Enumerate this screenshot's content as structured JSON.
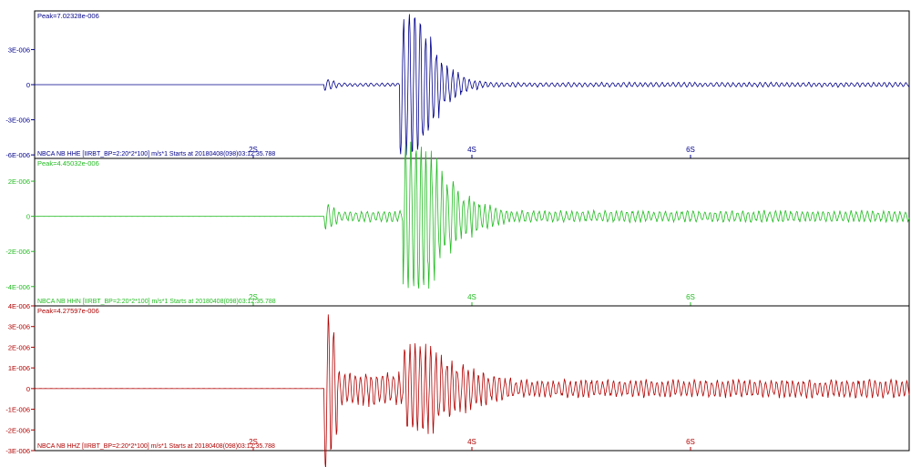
{
  "chart_data": [
    {
      "type": "line",
      "channel": "HHE",
      "color": "#00008b",
      "peak_label": "Peak=7.02328e-006",
      "caption": "NBCA NB HHE  [IIRBT_BP=2:20*2*100] m/s*1 Starts at 20180408(098)03:12:35.788",
      "ylim": [
        -6.3e-06,
        6.3e-06
      ],
      "yticks": [
        3e-06,
        0,
        -3e-06,
        -6e-06
      ],
      "ytick_labels": [
        "3E-006",
        "0",
        "-3E-006",
        "-6E-006"
      ],
      "xlim": [
        0,
        8
      ],
      "xticks": [
        2,
        4,
        6
      ],
      "xtick_labels": [
        "2S",
        "4S",
        "6S"
      ],
      "onset": 2.65,
      "s_time": 3.42,
      "p_amp": 5e-07,
      "p_coda": 1.2e-07,
      "s_peak": 6.3e-06,
      "s_decay": 0.18,
      "tail": 1.8e-07
    },
    {
      "type": "line",
      "channel": "HHN",
      "color": "#22bb22",
      "peak_label": "Peak=4.45032e-006",
      "caption": "NBCA NB HHN  [IIRBT_BP=2:20*2*100] m/s*1 Starts at 20180408(098)03:12:35.788",
      "ylim": [
        -5.1e-06,
        3.3e-06
      ],
      "yticks": [
        2e-06,
        0,
        -2e-06,
        -4e-06
      ],
      "ytick_labels": [
        "2E-006",
        "0",
        "-2E-006",
        "-4E-006"
      ],
      "xlim": [
        0,
        8
      ],
      "xticks": [
        2,
        4,
        6
      ],
      "xtick_labels": [
        "2S",
        "4S",
        "6S"
      ],
      "onset": 2.65,
      "s_time": 3.45,
      "p_amp": 8e-07,
      "p_coda": 2.5e-07,
      "s_peak": 4.4e-06,
      "s_decay": 0.3,
      "tail": 3e-07
    },
    {
      "type": "line",
      "channel": "HHZ",
      "color": "#b00000",
      "peak_label": "Peak=4.27597e-006",
      "caption": "NBCA NB HHZ  [IIRBT_BP=2:20*2*100] m/s*1 Starts at 20180408(098)03:12:35.788",
      "ylim": [
        -3e-06,
        4e-06
      ],
      "yticks": [
        4e-06,
        3e-06,
        2e-06,
        1e-06,
        0,
        -1e-06,
        -2e-06,
        -3e-06
      ],
      "ytick_labels": [
        "4E-006",
        "3E-006",
        "2E-006",
        "1E-006",
        "0",
        "-1E-006",
        "-2E-006",
        "-3E-006"
      ],
      "xlim": [
        0,
        8
      ],
      "xticks": [
        2,
        4,
        6
      ],
      "xtick_labels": [
        "2S",
        "4S",
        "6S"
      ],
      "onset": 2.65,
      "s_time": 3.45,
      "p_amp": 4.2e-06,
      "p_coda": 7e-07,
      "s_peak": 2.2e-06,
      "s_decay": 0.5,
      "tail": 4e-07
    }
  ]
}
